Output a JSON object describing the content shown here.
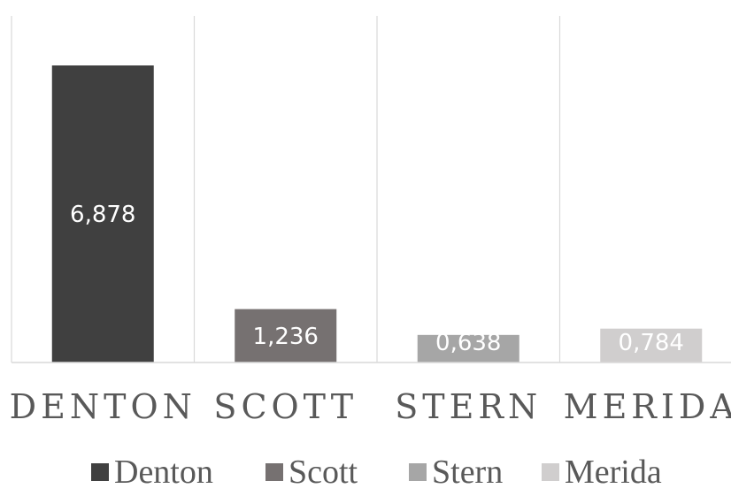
{
  "chart_data": {
    "type": "bar",
    "categories": [
      "DENTON",
      "SCOTT",
      "STERN",
      "MERIDA"
    ],
    "values": [
      6.878,
      1.236,
      0.638,
      0.784
    ],
    "data_labels": [
      "6,878",
      "1,236",
      "0,638",
      "0,784"
    ],
    "colors": [
      "#404040",
      "#767171",
      "#a6a6a6",
      "#d0cece"
    ],
    "legend": [
      "Denton",
      "Scott",
      "Stern",
      "Merida"
    ],
    "legend_position": "bottom",
    "ylim": [
      0,
      8
    ],
    "grid": "vertical-category-separators",
    "title": "",
    "xlabel": "",
    "ylabel": ""
  }
}
